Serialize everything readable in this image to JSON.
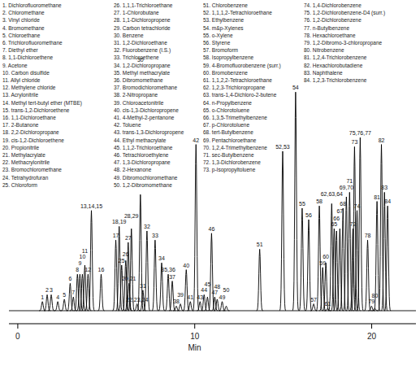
{
  "chart_data": {
    "type": "line",
    "color": "#000000",
    "x_label": "Min",
    "xlim": [
      -0.5,
      22.5
    ],
    "xticks": [
      0,
      10,
      20
    ],
    "ylim": [
      0,
      100
    ],
    "tick_labels": "x",
    "compounds": [
      "1. Dichlorofluoromethane",
      "2. Chloromethane",
      "3. Vinyl chloride",
      "4. Bromomethane",
      "5. Chloroethane",
      "6. Trichlorofluoromethane",
      "7. Diethyl ether",
      "8. 1,1-Dichloroethene",
      "9. Acetone",
      "10. Carbon disulfide",
      "11. Allyl chloride",
      "12. Methylene chloride",
      "13. Acrylonitrile",
      "14. Methyl tert-butyl ether (MTBE)",
      "15. trans-1,2-Dichloroethene",
      "16. 1,1-Dichloroethane",
      "17. 2-Butanone",
      "18. 2,2-Dichloropropane",
      "19. cis-1,2-Dichloroethene",
      "20. Propionitrile",
      "21. Methylacrylate",
      "22. Methacrylonitrile",
      "23. Bromochloromethane",
      "24. Tetrahydrofuran",
      "25. Chloroform",
      "26. 1,1,1-Trichloroethane",
      "27. 1-Chlorobutane",
      "28. 1,1-Dichloropropene",
      "29. Carbon tetrachloride",
      "30. Benzene",
      "31. 1,2-Dichloroethane",
      "32. Fluorobenzene (I.S.)",
      "33. Trichloroethene",
      "34. 1,2-Dichloropropane",
      "35. Methyl methacrylate",
      "36. Dibromomethane",
      "37. Bromodichloromethane",
      "38. 2-Nitropropane",
      "39. Chloroacetonitrile",
      "40. cis-1,3-Dichloropropene",
      "41. 4-Methyl-2-pentanone",
      "42. Toluene",
      "43. trans-1,3-Dichloropropene",
      "44. Ethyl methacrylate",
      "45. 1,1,2-Trichloroethane",
      "46. Tetrachloroethylene",
      "47. 1,3-Dichloropropane",
      "48. 2-Hexanone",
      "49. Dibromochloromethane",
      "50. 1,2-Dibromomethane",
      "51. Chlorobenzene",
      "52. 1,1,1,2-Tetrachloroethane",
      "53. Ethylbenzene",
      "54. m&p-Xylenes",
      "55. o-Xylene",
      "56. Styrene",
      "57. Bromoform",
      "58. Isopropylbenzene",
      "59. 4-Bromofluorobenzene (surr.)",
      "60. Bromobenzene",
      "61. 1,1,2,2-Tetrachloroethane",
      "62. 1,2,3-Trichloropropane",
      "63. trans-1,4-Dichloro-2-butene",
      "64. n-Propylbenzene",
      "65. o-Chlorotoluene",
      "66. 1,3,5-Trimethylbenzene",
      "67. p-Chlorotoluene",
      "68. tert-Butylbenzene",
      "69. Pentachloroethane",
      "70. 1,2,4-Trimethylbenzene",
      "71. sec-Butylbenzene",
      "72. 1,3-Dichlorobenzene",
      "73. p-Isopropyltoluene",
      "74. 1,4-Dichlorobenzene",
      "75. 1,2-Dichlorobenzene-D4 (surr.)",
      "76. 1,2-Dichlorobenzene",
      "77. n-Butylbenzene",
      "78. Hexachloroethane",
      "79. 1,2-Dibromo-3-chloropropane",
      "80. Nitrobenzene",
      "81. 1,2,4-Trichlorobenzene",
      "82. Hexachlorobutadiene",
      "83. Naphthalene",
      "84. 1,2,3-Trichlorobenzene"
    ],
    "categories": [
      "1",
      "2",
      "3",
      "4",
      "5",
      "6",
      "7",
      "8",
      "9",
      "10",
      "11",
      "12",
      "13,14,15",
      "16",
      "17",
      "18,19",
      "20,21",
      "22,23,24",
      "25",
      "26",
      "27",
      "28,29",
      "30",
      "31",
      "32",
      "33",
      "34",
      "35,36",
      "37",
      "38",
      "39",
      "40",
      "41",
      "42",
      "43",
      "44",
      "45",
      "46",
      "47",
      "48",
      "49",
      "50",
      "51",
      "52,53",
      "54",
      "55",
      "56",
      "57",
      "58",
      "59",
      "60",
      "61",
      "62,63,64",
      "65",
      "66",
      "67",
      "68",
      "69,70",
      "71",
      "72",
      "73",
      "74",
      "75,76,77",
      "78",
      "79",
      "80",
      "81",
      "82",
      "83",
      "84"
    ],
    "x": [
      1.39,
      1.66,
      1.89,
      2.26,
      2.63,
      2.96,
      3.14,
      3.37,
      3.51,
      3.65,
      3.79,
      3.97,
      4.16,
      4.71,
      5.54,
      5.73,
      6.28,
      6.74,
      5.87,
      6.1,
      6.24,
      6.42,
      6.93,
      7.07,
      7.3,
      7.76,
      8.13,
      8.5,
      8.73,
      8.96,
      9.19,
      9.52,
      9.75,
      10.07,
      10.3,
      10.53,
      10.72,
      10.95,
      11.13,
      11.27,
      11.55,
      11.78,
      13.67,
      14.97,
      15.7,
      16.07,
      16.44,
      16.72,
      17.04,
      17.23,
      17.41,
      17.51,
      17.74,
      17.88,
      18.01,
      18.2,
      18.38,
      18.57,
      18.75,
      18.94,
      19.03,
      19.17,
      19.35,
      19.77,
      19.99,
      20.18,
      20.3,
      20.55,
      20.72,
      20.9
    ],
    "values": [
      4,
      7,
      7,
      4,
      5,
      12,
      6,
      16,
      16,
      16,
      20,
      16,
      44,
      16,
      31,
      37,
      12,
      3,
      20,
      22,
      30,
      36,
      51,
      9,
      35,
      31,
      21,
      16,
      13,
      2,
      3,
      18,
      4,
      73,
      4,
      7,
      6,
      34,
      6,
      5,
      4,
      2,
      27,
      70,
      96,
      45,
      40,
      3,
      46,
      19,
      21,
      1,
      47,
      36,
      35,
      36,
      45,
      50,
      52,
      36,
      72,
      44,
      76,
      31,
      2,
      1,
      48,
      73,
      52,
      46
    ]
  }
}
